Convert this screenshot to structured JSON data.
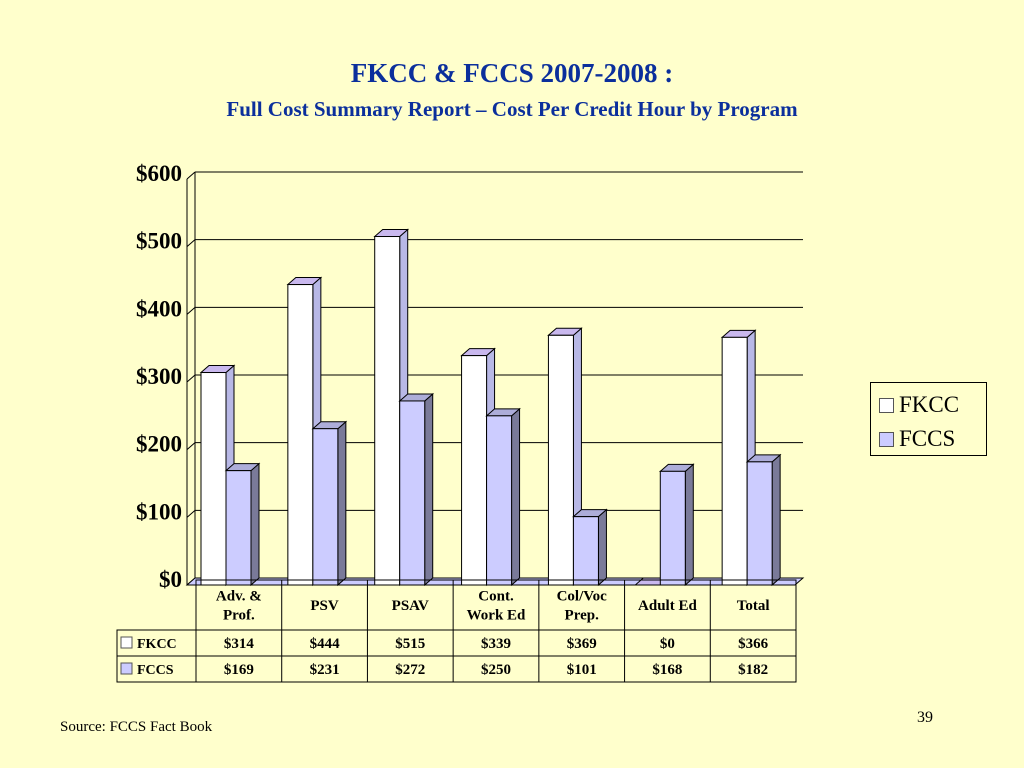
{
  "slide": {
    "title": "FKCC & FCCS 2007-2008 :",
    "subtitle": "Full Cost Summary Report – Cost Per Credit Hour by Program",
    "source": "Source: FCCS Fact Book",
    "page_number": "39"
  },
  "colors": {
    "title": "#0b2f9c",
    "background": "#ffffcc"
  },
  "chart_data": {
    "type": "bar",
    "three_d": true,
    "grid": true,
    "legend_position": "right",
    "ylim": [
      0,
      600
    ],
    "yticks": [
      "$0",
      "$100",
      "$200",
      "$300",
      "$400",
      "$500",
      "$600"
    ],
    "categories": [
      "Adv. & Prof.",
      "PSV",
      "PSAV",
      "Cont. Work Ed",
      "Col/Voc Prep.",
      "Adult Ed",
      "Total"
    ],
    "category_lines": [
      [
        "Adv. &",
        "Prof."
      ],
      [
        "PSV"
      ],
      [
        "PSAV"
      ],
      [
        "Cont.",
        "Work Ed"
      ],
      [
        "Col/Voc",
        "Prep."
      ],
      [
        "Adult Ed"
      ],
      [
        "Total"
      ]
    ],
    "series": [
      {
        "name": "FKCC",
        "color": "#ffffff",
        "values": [
          314,
          444,
          515,
          339,
          369,
          0,
          366
        ],
        "labels": [
          "$314",
          "$444",
          "$515",
          "$339",
          "$369",
          "$0",
          "$366"
        ]
      },
      {
        "name": "FCCS",
        "color": "#ccccff",
        "values": [
          169,
          231,
          272,
          250,
          101,
          168,
          182
        ],
        "labels": [
          "$169",
          "$231",
          "$272",
          "$250",
          "$101",
          "$168",
          "$182"
        ]
      }
    ]
  }
}
